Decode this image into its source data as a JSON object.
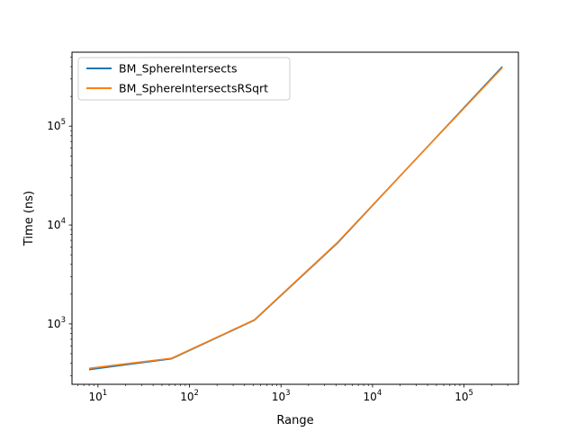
{
  "chart_data": {
    "type": "line",
    "title": "",
    "xlabel": "Range",
    "ylabel": "Time (ns)",
    "xscale": "log",
    "yscale": "log",
    "xlim": [
      5.2,
      393000
    ],
    "ylim": [
      245,
      560000
    ],
    "x": [
      8,
      64,
      512,
      4096,
      32768,
      262144
    ],
    "x_ticks": [
      {
        "value": 10,
        "base": "10",
        "exp": "1"
      },
      {
        "value": 100,
        "base": "10",
        "exp": "2"
      },
      {
        "value": 1000,
        "base": "10",
        "exp": "3"
      },
      {
        "value": 10000,
        "base": "10",
        "exp": "4"
      },
      {
        "value": 100000,
        "base": "10",
        "exp": "5"
      }
    ],
    "y_ticks": [
      {
        "value": 1000,
        "base": "10",
        "exp": "3"
      },
      {
        "value": 10000,
        "base": "10",
        "exp": "4"
      },
      {
        "value": 100000,
        "base": "10",
        "exp": "5"
      }
    ],
    "series": [
      {
        "name": "BM_SphereIntersects",
        "color": "#1f77b4",
        "values": [
          345,
          445,
          1090,
          6500,
          51000,
          400000
        ]
      },
      {
        "name": "BM_SphereIntersectsRSqrt",
        "color": "#ff7f0e",
        "values": [
          355,
          450,
          1100,
          6600,
          51000,
          390000
        ]
      }
    ],
    "legend": "top-left",
    "grid": false
  }
}
